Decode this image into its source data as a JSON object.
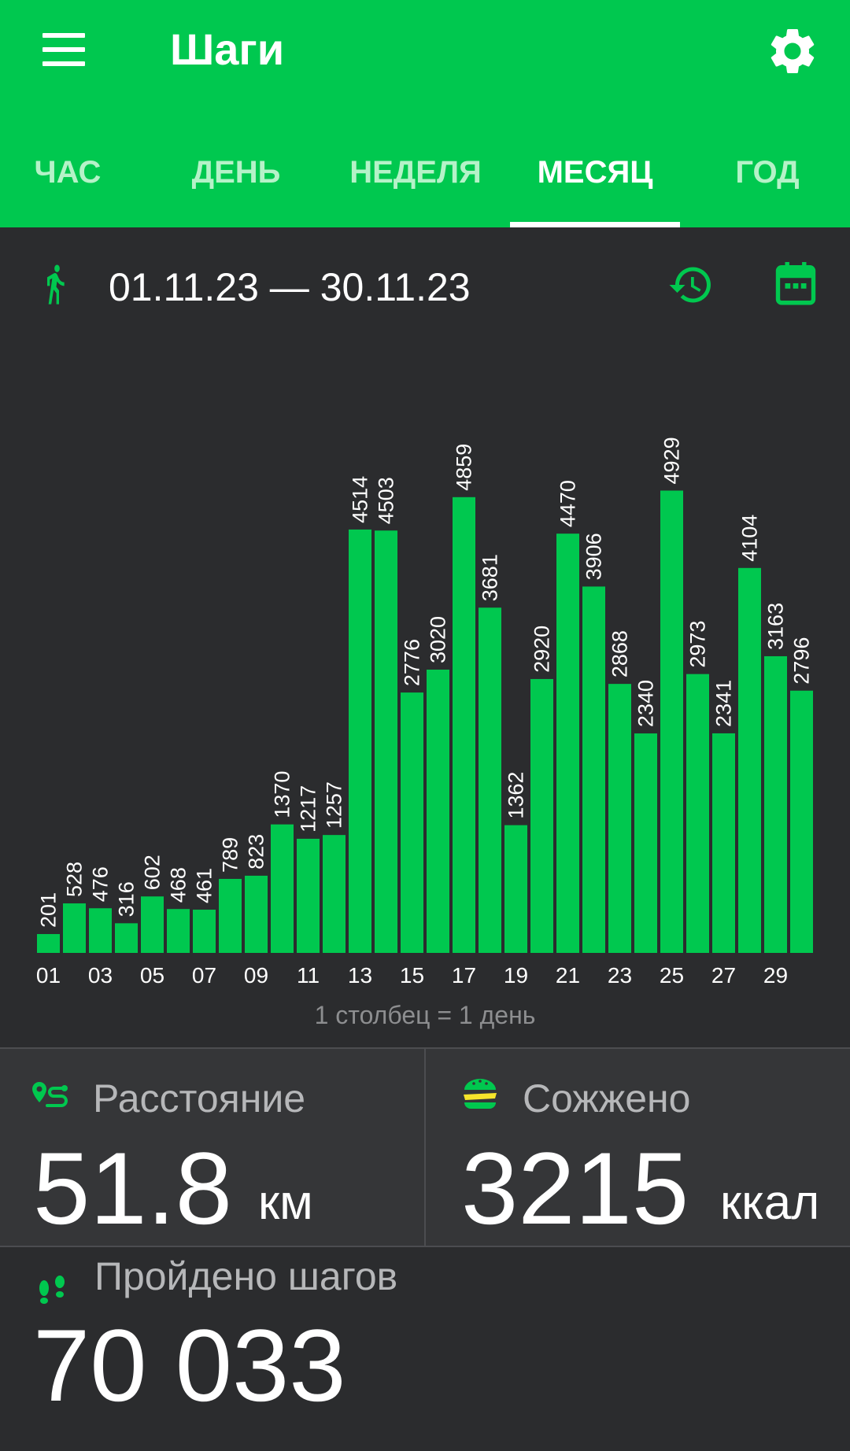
{
  "app": {
    "title": "Шаги"
  },
  "tabs": [
    {
      "label": "ЧАС"
    },
    {
      "label": "ДЕНЬ"
    },
    {
      "label": "НЕДЕЛЯ"
    },
    {
      "label": "МЕСЯЦ",
      "active": true
    },
    {
      "label": "ГОД"
    }
  ],
  "period": {
    "date_range": "01.11.23 — 30.11.23",
    "icons": [
      "walk-icon",
      "history-icon",
      "calendar-icon"
    ]
  },
  "chart_data": {
    "type": "bar",
    "categories": [
      "01",
      "02",
      "03",
      "04",
      "05",
      "06",
      "07",
      "08",
      "09",
      "10",
      "11",
      "12",
      "13",
      "14",
      "15",
      "16",
      "17",
      "18",
      "19",
      "20",
      "21",
      "22",
      "23",
      "24",
      "25",
      "26",
      "27",
      "28",
      "29",
      "30"
    ],
    "x_tick_labels": [
      "01",
      "03",
      "05",
      "07",
      "09",
      "11",
      "13",
      "15",
      "17",
      "19",
      "21",
      "23",
      "25",
      "27",
      "29"
    ],
    "values": [
      201,
      528,
      476,
      316,
      602,
      468,
      461,
      789,
      823,
      1370,
      1217,
      1257,
      4514,
      4503,
      2776,
      3020,
      4859,
      3681,
      1362,
      2920,
      4470,
      3906,
      2868,
      2340,
      4929,
      2973,
      2341,
      4104,
      3163,
      2796
    ],
    "bar_color": "#00c84f",
    "grid": false,
    "caption": "1 столбец = 1 день"
  },
  "stats": {
    "distance": {
      "label": "Расстояние",
      "value": "51.8",
      "unit": "км",
      "icon": "route-icon"
    },
    "calories": {
      "label": "Сожжено",
      "value": "3215",
      "unit": "ккал",
      "icon": "burger-icon"
    },
    "steps": {
      "label": "Пройдено шагов",
      "value": "70 033",
      "icon": "footprints-icon"
    }
  },
  "colors": {
    "accent": "#00c84f",
    "background": "#2b2c2e",
    "card": "#353638"
  }
}
